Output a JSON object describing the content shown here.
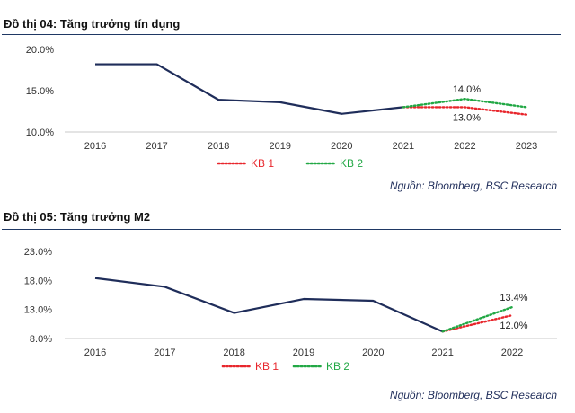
{
  "chart_data": [
    {
      "type": "line",
      "title": "Đồ thị 04: Tăng trưởng tín dụng",
      "source": "Nguồn: Bloomberg, BSC Research",
      "categories": [
        "2016",
        "2017",
        "2018",
        "2019",
        "2020",
        "2021",
        "2022",
        "2023"
      ],
      "ylim": [
        10,
        20
      ],
      "yticks": [
        "20.0%",
        "15.0%",
        "10.0%"
      ],
      "ytick_values": [
        20,
        15,
        10
      ],
      "grid": false,
      "legend_position": "bottom-left",
      "series": [
        {
          "key": "actual",
          "color": "#1f2d5a",
          "style": "solid",
          "values": [
            18.2,
            18.2,
            13.9,
            13.6,
            12.2,
            13.0,
            null,
            null
          ]
        },
        {
          "key": "kb1",
          "name": "KB 1",
          "color": "#e8262c",
          "style": "dotted",
          "values": [
            null,
            null,
            null,
            null,
            null,
            13.0,
            13.0,
            12.1
          ]
        },
        {
          "key": "kb2",
          "name": "KB 2",
          "color": "#22a845",
          "style": "dotted",
          "values": [
            null,
            null,
            null,
            null,
            null,
            13.0,
            14.0,
            13.0
          ]
        }
      ],
      "annotations": [
        {
          "text": "14.0%",
          "category": "2022",
          "value": 14.0,
          "series": "kb2",
          "anchor": "above"
        },
        {
          "text": "13.0%",
          "category": "2022",
          "value": 13.0,
          "series": "kb1",
          "anchor": "below"
        }
      ]
    },
    {
      "type": "line",
      "title": "Đồ thị 05: Tăng trưởng M2",
      "source": "Nguồn: Bloomberg, BSC Research",
      "categories": [
        "2016",
        "2017",
        "2018",
        "2019",
        "2020",
        "2021",
        "2022"
      ],
      "ylim": [
        8,
        23
      ],
      "yticks": [
        "23.0%",
        "18.0%",
        "13.0%",
        "8.0%"
      ],
      "ytick_values": [
        23,
        18,
        13,
        8
      ],
      "grid": false,
      "legend_position": "bottom-left",
      "series": [
        {
          "key": "actual",
          "color": "#1f2d5a",
          "style": "solid",
          "values": [
            18.4,
            16.9,
            12.4,
            14.8,
            14.5,
            9.2,
            null
          ]
        },
        {
          "key": "kb1",
          "name": "KB 1",
          "color": "#e8262c",
          "style": "dotted",
          "values": [
            null,
            null,
            null,
            null,
            null,
            9.2,
            12.0
          ]
        },
        {
          "key": "kb2",
          "name": "KB 2",
          "color": "#22a845",
          "style": "dotted",
          "values": [
            null,
            null,
            null,
            null,
            null,
            9.2,
            13.4
          ]
        }
      ],
      "annotations": [
        {
          "text": "13.4%",
          "category": "2022",
          "value": 13.4,
          "series": "kb2",
          "anchor": "above"
        },
        {
          "text": "12.0%",
          "category": "2022",
          "value": 12.0,
          "series": "kb1",
          "anchor": "below"
        }
      ]
    }
  ]
}
